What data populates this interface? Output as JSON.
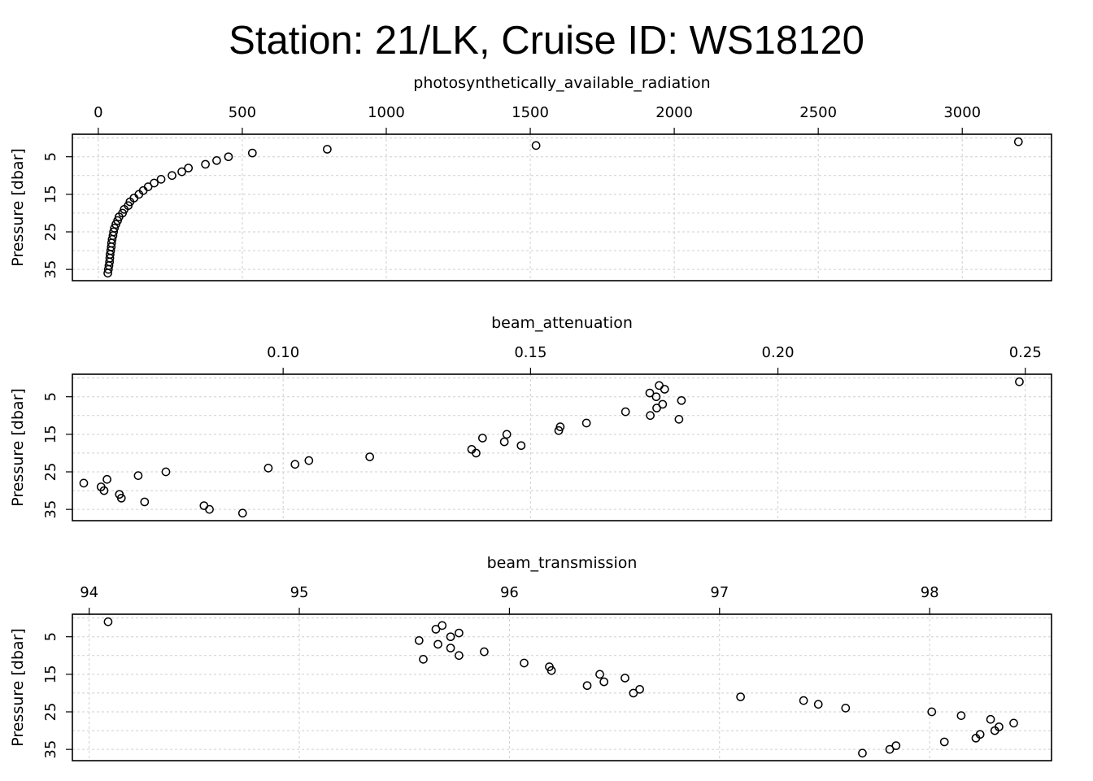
{
  "title": "Station: 21/LK, Cruise ID: WS18120",
  "chart_data": [
    {
      "type": "scatter",
      "xlabel": "photosynthetically_available_radiation",
      "ylabel": "Pressure [dbar]",
      "xlim": [
        -90,
        3310
      ],
      "ylim": [
        38,
        -1
      ],
      "xticks": [
        0,
        500,
        1000,
        1500,
        2000,
        2500,
        3000
      ],
      "xtick_labels": [
        "0",
        "500",
        "1000",
        "1500",
        "2000",
        "2500",
        "3000"
      ],
      "yticks": [
        5,
        15,
        25,
        35
      ],
      "ytick_labels": [
        "5",
        "15",
        "25",
        "35"
      ],
      "grid": true,
      "points": [
        {
          "x": 3195,
          "y": 1
        },
        {
          "x": 1520,
          "y": 2
        },
        {
          "x": 795,
          "y": 3
        },
        {
          "x": 535,
          "y": 4
        },
        {
          "x": 452,
          "y": 5
        },
        {
          "x": 411,
          "y": 6
        },
        {
          "x": 372,
          "y": 7
        },
        {
          "x": 313,
          "y": 8
        },
        {
          "x": 290,
          "y": 9
        },
        {
          "x": 256,
          "y": 10
        },
        {
          "x": 218,
          "y": 11
        },
        {
          "x": 194,
          "y": 12
        },
        {
          "x": 173,
          "y": 13
        },
        {
          "x": 156,
          "y": 14
        },
        {
          "x": 141,
          "y": 15
        },
        {
          "x": 124,
          "y": 16
        },
        {
          "x": 110,
          "y": 17
        },
        {
          "x": 104,
          "y": 18
        },
        {
          "x": 90,
          "y": 19
        },
        {
          "x": 84,
          "y": 20
        },
        {
          "x": 72,
          "y": 21
        },
        {
          "x": 67,
          "y": 22
        },
        {
          "x": 61,
          "y": 23
        },
        {
          "x": 56,
          "y": 24
        },
        {
          "x": 53,
          "y": 25
        },
        {
          "x": 51,
          "y": 26
        },
        {
          "x": 48,
          "y": 27
        },
        {
          "x": 46,
          "y": 28
        },
        {
          "x": 45,
          "y": 29
        },
        {
          "x": 43,
          "y": 30
        },
        {
          "x": 41,
          "y": 31
        },
        {
          "x": 40,
          "y": 32
        },
        {
          "x": 39,
          "y": 33
        },
        {
          "x": 37,
          "y": 34
        },
        {
          "x": 35,
          "y": 35
        },
        {
          "x": 33,
          "y": 36
        }
      ]
    },
    {
      "type": "scatter",
      "xlabel": "beam_attenuation",
      "ylabel": "Pressure [dbar]",
      "xlim": [
        0.0574,
        0.2553
      ],
      "ylim": [
        38,
        -1
      ],
      "xticks": [
        0.1,
        0.15,
        0.2,
        0.25
      ],
      "xtick_labels": [
        "0.10",
        "0.15",
        "0.20",
        "0.25"
      ],
      "yticks": [
        5,
        15,
        25,
        35
      ],
      "ytick_labels": [
        "5",
        "15",
        "25",
        "35"
      ],
      "grid": true,
      "points": [
        {
          "x": 0.2488,
          "y": 1
        },
        {
          "x": 0.176,
          "y": 2
        },
        {
          "x": 0.1771,
          "y": 3
        },
        {
          "x": 0.1741,
          "y": 4
        },
        {
          "x": 0.1754,
          "y": 5
        },
        {
          "x": 0.1805,
          "y": 6
        },
        {
          "x": 0.1767,
          "y": 7
        },
        {
          "x": 0.1755,
          "y": 8
        },
        {
          "x": 0.1692,
          "y": 9
        },
        {
          "x": 0.1742,
          "y": 10
        },
        {
          "x": 0.18,
          "y": 11
        },
        {
          "x": 0.1613,
          "y": 12
        },
        {
          "x": 0.156,
          "y": 13
        },
        {
          "x": 0.1557,
          "y": 14
        },
        {
          "x": 0.1452,
          "y": 15
        },
        {
          "x": 0.1403,
          "y": 16
        },
        {
          "x": 0.1447,
          "y": 17
        },
        {
          "x": 0.1481,
          "y": 18
        },
        {
          "x": 0.1381,
          "y": 19
        },
        {
          "x": 0.139,
          "y": 20
        },
        {
          "x": 0.1175,
          "y": 21
        },
        {
          "x": 0.1052,
          "y": 22
        },
        {
          "x": 0.1024,
          "y": 23
        },
        {
          "x": 0.097,
          "y": 24
        },
        {
          "x": 0.0763,
          "y": 25
        },
        {
          "x": 0.0707,
          "y": 26
        },
        {
          "x": 0.0644,
          "y": 27
        },
        {
          "x": 0.0597,
          "y": 28
        },
        {
          "x": 0.0632,
          "y": 29
        },
        {
          "x": 0.0638,
          "y": 30
        },
        {
          "x": 0.0669,
          "y": 31
        },
        {
          "x": 0.0673,
          "y": 32
        },
        {
          "x": 0.072,
          "y": 33
        },
        {
          "x": 0.084,
          "y": 34
        },
        {
          "x": 0.0851,
          "y": 35
        },
        {
          "x": 0.0918,
          "y": 36
        }
      ]
    },
    {
      "type": "scatter",
      "xlabel": "beam_transmission",
      "ylabel": "Pressure [dbar]",
      "xlim": [
        93.92,
        98.58
      ],
      "ylim": [
        38,
        -1
      ],
      "xticks": [
        94,
        95,
        96,
        97,
        98
      ],
      "xtick_labels": [
        "94",
        "95",
        "96",
        "97",
        "98"
      ],
      "yticks": [
        5,
        15,
        25,
        35
      ],
      "ytick_labels": [
        "5",
        "15",
        "25",
        "35"
      ],
      "grid": true,
      "points": [
        {
          "x": 94.09,
          "y": 1
        },
        {
          "x": 95.68,
          "y": 2
        },
        {
          "x": 95.65,
          "y": 3
        },
        {
          "x": 95.76,
          "y": 4
        },
        {
          "x": 95.72,
          "y": 5
        },
        {
          "x": 95.57,
          "y": 6
        },
        {
          "x": 95.66,
          "y": 7
        },
        {
          "x": 95.72,
          "y": 8
        },
        {
          "x": 95.88,
          "y": 9
        },
        {
          "x": 95.76,
          "y": 10
        },
        {
          "x": 95.59,
          "y": 11
        },
        {
          "x": 96.07,
          "y": 12
        },
        {
          "x": 96.19,
          "y": 13
        },
        {
          "x": 96.2,
          "y": 14
        },
        {
          "x": 96.43,
          "y": 15
        },
        {
          "x": 96.55,
          "y": 16
        },
        {
          "x": 96.45,
          "y": 17
        },
        {
          "x": 96.37,
          "y": 18
        },
        {
          "x": 96.62,
          "y": 19
        },
        {
          "x": 96.59,
          "y": 20
        },
        {
          "x": 97.1,
          "y": 21
        },
        {
          "x": 97.4,
          "y": 22
        },
        {
          "x": 97.47,
          "y": 23
        },
        {
          "x": 97.6,
          "y": 24
        },
        {
          "x": 98.01,
          "y": 25
        },
        {
          "x": 98.15,
          "y": 26
        },
        {
          "x": 98.29,
          "y": 27
        },
        {
          "x": 98.4,
          "y": 28
        },
        {
          "x": 98.33,
          "y": 29
        },
        {
          "x": 98.31,
          "y": 30
        },
        {
          "x": 98.24,
          "y": 31
        },
        {
          "x": 98.22,
          "y": 32
        },
        {
          "x": 98.07,
          "y": 33
        },
        {
          "x": 97.84,
          "y": 34
        },
        {
          "x": 97.81,
          "y": 35
        },
        {
          "x": 97.68,
          "y": 36
        }
      ]
    }
  ]
}
